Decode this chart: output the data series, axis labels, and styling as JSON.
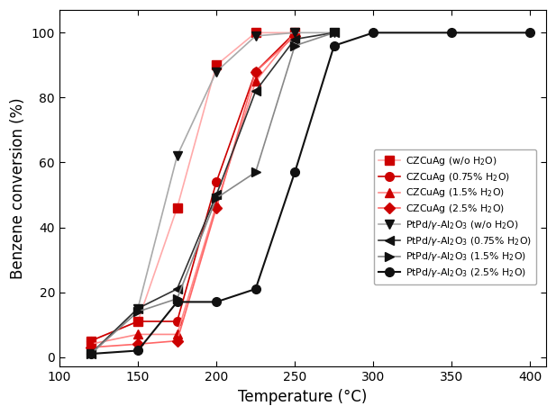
{
  "xlabel": "Temperature (°C)",
  "ylabel": "Benzene conversion (%)",
  "xlim": [
    100,
    410
  ],
  "ylim": [
    -3,
    107
  ],
  "xticks": [
    100,
    150,
    200,
    250,
    300,
    350,
    400
  ],
  "yticks": [
    0,
    20,
    40,
    60,
    80,
    100
  ],
  "series": [
    {
      "label": "CZCuAg (w/o H$_2$O)",
      "linecolor": "#ffaaaa",
      "marker": "s",
      "markercolor": "#cc0000",
      "markersize": 7,
      "linewidth": 1.2,
      "x": [
        120,
        150,
        175,
        200,
        225,
        250
      ],
      "y": [
        5,
        11,
        46,
        90,
        100,
        100
      ]
    },
    {
      "label": "CZCuAg (0.75% H$_2$O)",
      "linecolor": "#cc0000",
      "marker": "o",
      "markercolor": "#cc0000",
      "markersize": 7,
      "linewidth": 1.2,
      "x": [
        120,
        150,
        175,
        200,
        225,
        250
      ],
      "y": [
        5,
        11,
        11,
        54,
        88,
        100
      ]
    },
    {
      "label": "CZCuAg (1.5% H$_2$O)",
      "linecolor": "#ff8888",
      "marker": "^",
      "markercolor": "#cc0000",
      "markersize": 7,
      "linewidth": 1.2,
      "x": [
        120,
        150,
        175,
        200,
        225,
        250
      ],
      "y": [
        4,
        7,
        7,
        47,
        85,
        100
      ]
    },
    {
      "label": "CZCuAg (2.5% H$_2$O)",
      "linecolor": "#ff6666",
      "marker": "D",
      "markercolor": "#cc0000",
      "markersize": 6,
      "linewidth": 1.2,
      "x": [
        120,
        150,
        175,
        200,
        225,
        250
      ],
      "y": [
        3,
        4,
        5,
        46,
        88,
        99
      ]
    },
    {
      "label": "PtPd/$\\gamma$-Al$_2$O$_3$ (w/o H$_2$O)",
      "linecolor": "#aaaaaa",
      "marker": "v",
      "markercolor": "#111111",
      "markersize": 7,
      "linewidth": 1.2,
      "x": [
        120,
        150,
        175,
        200,
        225,
        250,
        275
      ],
      "y": [
        1,
        15,
        62,
        88,
        99,
        100,
        100
      ]
    },
    {
      "label": "PtPd/$\\gamma$-Al$_2$O$_3$ (0.75% H$_2$O)",
      "linecolor": "#333333",
      "marker": "<",
      "markercolor": "#111111",
      "markersize": 7,
      "linewidth": 1.2,
      "x": [
        120,
        150,
        175,
        200,
        225,
        250,
        275
      ],
      "y": [
        1,
        15,
        21,
        50,
        82,
        98,
        100
      ]
    },
    {
      "label": "PtPd/$\\gamma$-Al$_2$O$_3$ (1.5% H$_2$O)",
      "linecolor": "#888888",
      "marker": ">",
      "markercolor": "#111111",
      "markersize": 7,
      "linewidth": 1.2,
      "x": [
        120,
        150,
        175,
        200,
        225,
        250,
        275
      ],
      "y": [
        1,
        14,
        18,
        49,
        57,
        96,
        100
      ]
    },
    {
      "label": "PtPd/$\\gamma$-Al$_2$O$_3$ (2.5% H$_2$O)",
      "linecolor": "#111111",
      "marker": "o",
      "markercolor": "#111111",
      "markersize": 7,
      "linewidth": 1.5,
      "x": [
        120,
        150,
        175,
        200,
        225,
        250,
        275,
        300,
        350,
        400
      ],
      "y": [
        1,
        2,
        17,
        17,
        21,
        57,
        96,
        100,
        100,
        100
      ]
    }
  ]
}
